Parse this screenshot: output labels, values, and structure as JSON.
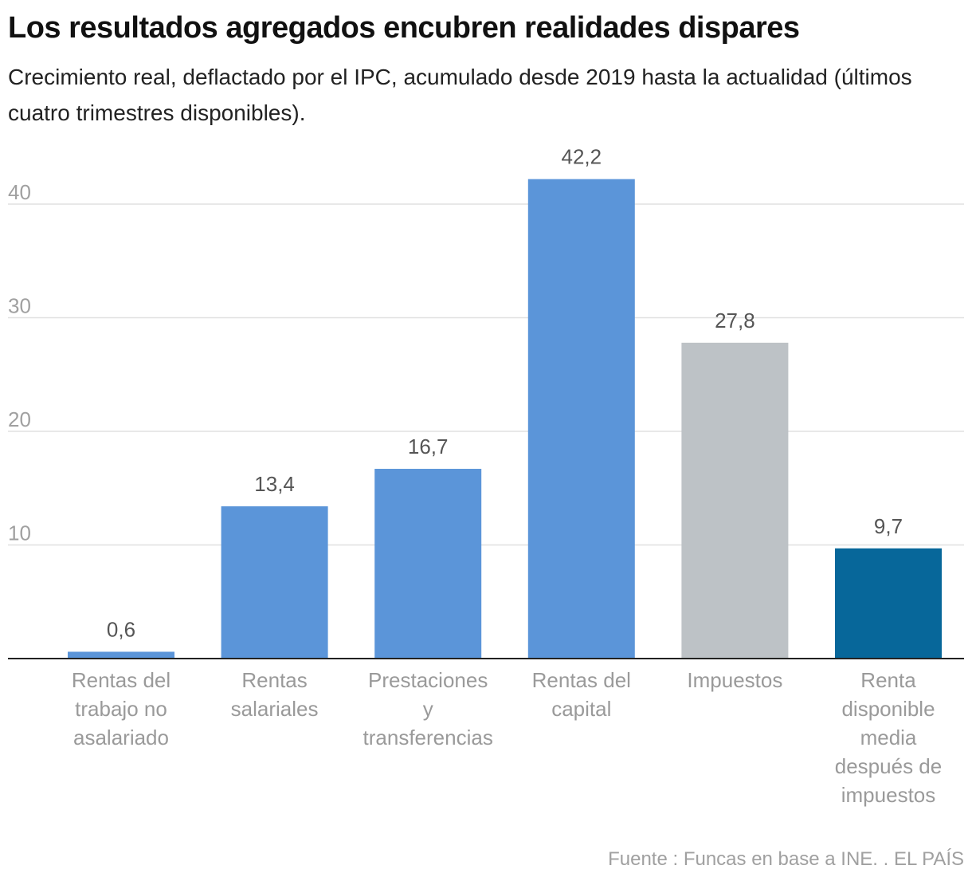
{
  "header": {
    "title": "Los resultados agregados encubren realidades dispares",
    "subtitle": "Crecimiento real, deflactado por el IPC, acumulado desde 2019 hasta la actualidad (últimos cuatro trimestres disponibles)."
  },
  "chart_data": {
    "type": "bar",
    "categories": [
      [
        "Rentas del",
        "trabajo no",
        "asalariado"
      ],
      [
        "Rentas",
        "salariales"
      ],
      [
        "Prestaciones",
        "y",
        "transferencias"
      ],
      [
        "Rentas del",
        "capital"
      ],
      [
        "Impuestos"
      ],
      [
        "Renta",
        "disponible",
        "media",
        "después de",
        "impuestos"
      ]
    ],
    "values": [
      0.6,
      13.4,
      16.7,
      42.2,
      27.8,
      9.7
    ],
    "value_labels": [
      "0,6",
      "13,4",
      "16,7",
      "42,2",
      "27,8",
      "9,7"
    ],
    "bar_colors": [
      "#5b95d9",
      "#5b95d9",
      "#5b95d9",
      "#5b95d9",
      "#bdc2c6",
      "#07679a"
    ],
    "yticks": [
      10,
      20,
      30,
      40
    ],
    "ylim": [
      0,
      45
    ],
    "grid": true,
    "legend": "none"
  },
  "footer": {
    "source": "Fuente : Funcas en base a INE. . EL PAÍS"
  }
}
